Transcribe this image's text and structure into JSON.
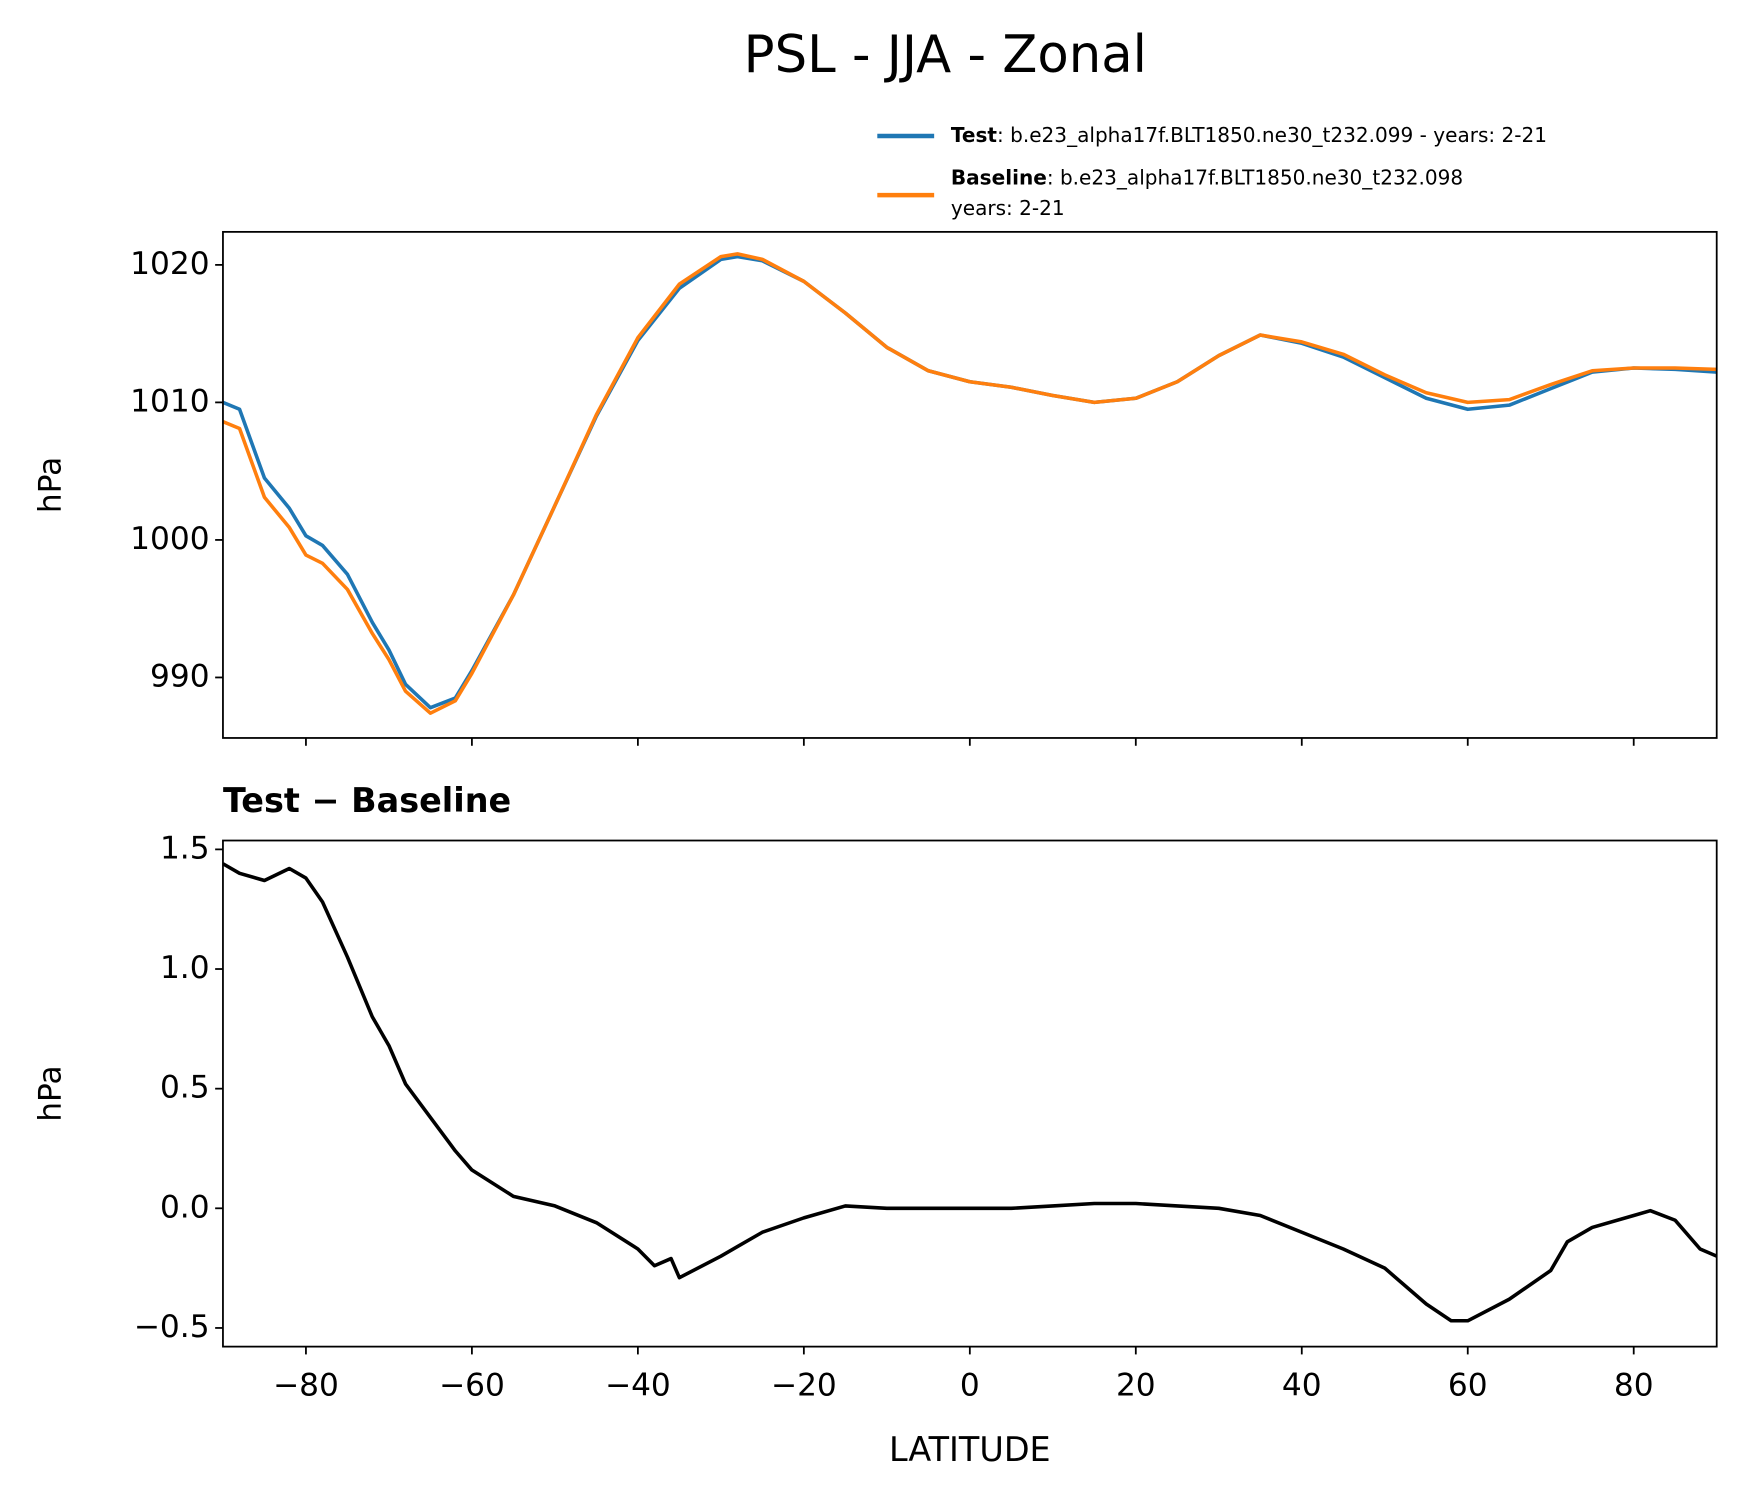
{
  "chart_data": [
    {
      "type": "line",
      "title": "PSL - JJA - Zonal",
      "ylabel": "hPa",
      "x": [
        -90,
        -88,
        -85,
        -82,
        -80,
        -78,
        -75,
        -72,
        -70,
        -68,
        -65,
        -62,
        -60,
        -55,
        -50,
        -45,
        -40,
        -35,
        -30,
        -28,
        -25,
        -20,
        -15,
        -10,
        -5,
        0,
        5,
        10,
        15,
        20,
        25,
        30,
        35,
        40,
        45,
        50,
        55,
        60,
        65,
        70,
        75,
        80,
        85,
        90
      ],
      "series": [
        {
          "name": "Test",
          "description": ": b.e23_alpha17f.BLT1850.ne30_t232.099 - years: 2-21",
          "color": "#1f77b4",
          "values": [
            1010.0,
            1009.5,
            1004.5,
            1002.3,
            1000.3,
            999.6,
            997.5,
            994.0,
            992.0,
            989.5,
            987.8,
            988.5,
            990.5,
            996.0,
            1002.5,
            1009.0,
            1014.5,
            1018.3,
            1020.4,
            1020.6,
            1020.3,
            1018.8,
            1016.5,
            1014.0,
            1012.3,
            1011.5,
            1011.1,
            1010.5,
            1010.0,
            1010.3,
            1011.5,
            1013.4,
            1014.9,
            1014.3,
            1013.3,
            1011.8,
            1010.3,
            1009.5,
            1009.8,
            1011.0,
            1012.2,
            1012.5,
            1012.4,
            1012.2
          ]
        },
        {
          "name": "Baseline",
          "description": [
            ": b.e23_alpha17f.BLT1850.ne30_t232.098",
            "years: 2-21"
          ],
          "color": "#ff7f0e",
          "values": [
            1008.6,
            1008.1,
            1003.1,
            1000.9,
            998.9,
            998.3,
            996.4,
            993.2,
            991.3,
            989.0,
            987.4,
            988.3,
            990.3,
            996.0,
            1002.5,
            1009.1,
            1014.7,
            1018.6,
            1020.6,
            1020.8,
            1020.4,
            1018.8,
            1016.5,
            1014.0,
            1012.3,
            1011.5,
            1011.1,
            1010.5,
            1010.0,
            1010.3,
            1011.5,
            1013.4,
            1014.9,
            1014.4,
            1013.5,
            1012.0,
            1010.7,
            1010.0,
            1010.2,
            1011.3,
            1012.3,
            1012.5,
            1012.5,
            1012.4
          ]
        }
      ],
      "xlim": [
        -90,
        90
      ],
      "xticks": [
        -80,
        -60,
        -40,
        -20,
        0,
        20,
        40,
        60,
        80
      ],
      "ylim": [
        985.6,
        1022.4
      ],
      "yticks": [
        990,
        1000,
        1010,
        1020
      ]
    },
    {
      "type": "line",
      "title": "Test − Baseline",
      "ylabel": "hPa",
      "xlabel": "LATITUDE",
      "x": [
        -90,
        -88,
        -85,
        -82,
        -80,
        -78,
        -75,
        -72,
        -70,
        -68,
        -65,
        -62,
        -60,
        -55,
        -50,
        -45,
        -40,
        -38,
        -36,
        -35,
        -30,
        -28,
        -25,
        -20,
        -15,
        -10,
        -5,
        0,
        5,
        10,
        15,
        20,
        25,
        30,
        35,
        40,
        45,
        50,
        55,
        58,
        60,
        65,
        70,
        72,
        75,
        80,
        82,
        85,
        88,
        90
      ],
      "series": [
        {
          "name": "Test − Baseline",
          "color": "#000000",
          "values": [
            1.44,
            1.4,
            1.37,
            1.42,
            1.38,
            1.28,
            1.05,
            0.8,
            0.68,
            0.52,
            0.38,
            0.24,
            0.16,
            0.05,
            0.01,
            -0.06,
            -0.17,
            -0.24,
            -0.21,
            -0.29,
            -0.2,
            -0.16,
            -0.1,
            -0.04,
            0.01,
            0.0,
            0.0,
            0.0,
            0.0,
            0.01,
            0.02,
            0.02,
            0.01,
            0.0,
            -0.03,
            -0.1,
            -0.17,
            -0.25,
            -0.4,
            -0.47,
            -0.47,
            -0.38,
            -0.26,
            -0.14,
            -0.08,
            -0.03,
            -0.01,
            -0.05,
            -0.17,
            -0.2
          ]
        }
      ],
      "xlim": [
        -90,
        90
      ],
      "xticks": [
        {
          "value": -80,
          "label": "−80"
        },
        {
          "value": -60,
          "label": "−60"
        },
        {
          "value": -40,
          "label": "−40"
        },
        {
          "value": -20,
          "label": "−20"
        },
        0,
        20,
        40,
        60,
        80
      ],
      "ylim": [
        -0.578,
        1.537
      ],
      "yticks": [
        {
          "value": -0.5,
          "label": "−0.5"
        },
        {
          "value": 0.0,
          "label": "0.0"
        },
        {
          "value": 0.5,
          "label": "0.5"
        },
        {
          "value": 1.0,
          "label": "1.0"
        },
        {
          "value": 1.5,
          "label": "1.5"
        }
      ]
    }
  ]
}
